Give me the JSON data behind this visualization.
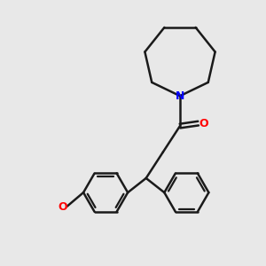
{
  "background_color": "#e8e8e8",
  "bond_color": "#1a1a1a",
  "nitrogen_color": "#0000ff",
  "oxygen_color": "#ff0000",
  "bond_width": 1.8,
  "figsize": [
    3.0,
    3.0
  ],
  "dpi": 100,
  "xlim": [
    0,
    10
  ],
  "ylim": [
    0,
    10
  ]
}
